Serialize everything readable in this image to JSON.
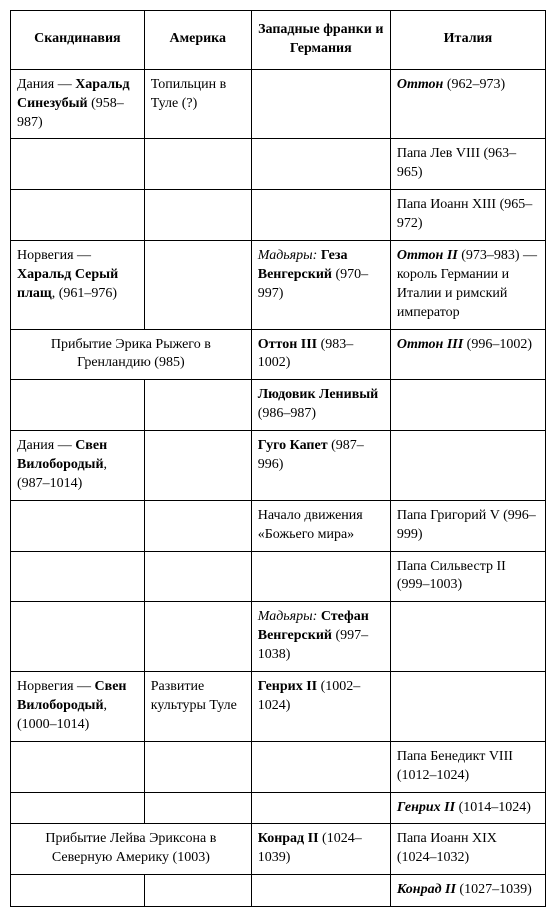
{
  "font_family": "Times New Roman",
  "font_size_pt": 11,
  "border_color": "#000000",
  "background_color": "#ffffff",
  "headers": {
    "col1": "Скандинавия",
    "col2": "Америка",
    "col3": "Западные франки и Германия",
    "col4": "Италия"
  },
  "rows": {
    "r1": {
      "c1_before": "Дания — ",
      "c1_bold": "Харальд Синезубый",
      "c1_after": " (958–987)",
      "c2": "Топильцин в Туле (?)",
      "c4_bold": "Оттон",
      "c4_after": " (962–973)"
    },
    "r2": {
      "c4": "Папа Лев VIII (963–965)"
    },
    "r3": {
      "c4": "Папа Иоанн XIII (965–972)"
    },
    "r4": {
      "c1_before": "Норвегия — ",
      "c1_bold": "Харальд Серый плащ",
      "c1_after": ", (961–976)",
      "c3_it": "Мадьяры:",
      "c3_bold": " Геза Венгерский",
      "c3_after": " (970–997)",
      "c4_bold": "Оттон II",
      "c4_after": " (973–983) — король Германии и Италии и римский император"
    },
    "r5": {
      "span": "Прибытие Эрика Рыжего в Гренландию (985)",
      "c3_bold": "Оттон III",
      "c3_after": " (983–1002)",
      "c4_bold": "Оттон III",
      "c4_after": " (996–1002)"
    },
    "r6": {
      "c3_bold": "Людовик Ленивый",
      "c3_after": " (986–987)"
    },
    "r7": {
      "c1_before": "Дания — ",
      "c1_bold": "Свен Вилобородый",
      "c1_after": ", (987–1014)",
      "c3_bold": "Гуго Капет",
      "c3_after": " (987–996)"
    },
    "r8": {
      "c3": "Начало движения «Божьего мира»",
      "c4": "Папа Григорий V (996–999)"
    },
    "r9": {
      "c4": "Папа Сильвестр II (999–1003)"
    },
    "r10": {
      "c3_it": "Мадьяры:",
      "c3_bold": " Стефан Венгерский",
      "c3_after": " (997–1038)"
    },
    "r11": {
      "c1_before": "Норвегия — ",
      "c1_bold": "Свен Вилобородый",
      "c1_after": ", (1000–1014)",
      "c2": "Развитие культуры Туле",
      "c3_bold": "Генрих II",
      "c3_after": " (1002–1024)"
    },
    "r12": {
      "c4": "Папа Бенедикт VIII (1012–1024)"
    },
    "r13": {
      "c4_bold": "Генрих II",
      "c4_after": " (1014–1024)"
    },
    "r14": {
      "span": "Прибытие Лейва Эриксона в Северную Америку (1003)",
      "c3_bold": "Конрад II",
      "c3_after": " (1024–1039)",
      "c4": "Папа Иоанн XIX (1024–1032)"
    },
    "r15": {
      "c4_bold": "Конрад II",
      "c4_after": " (1027–1039)"
    }
  }
}
